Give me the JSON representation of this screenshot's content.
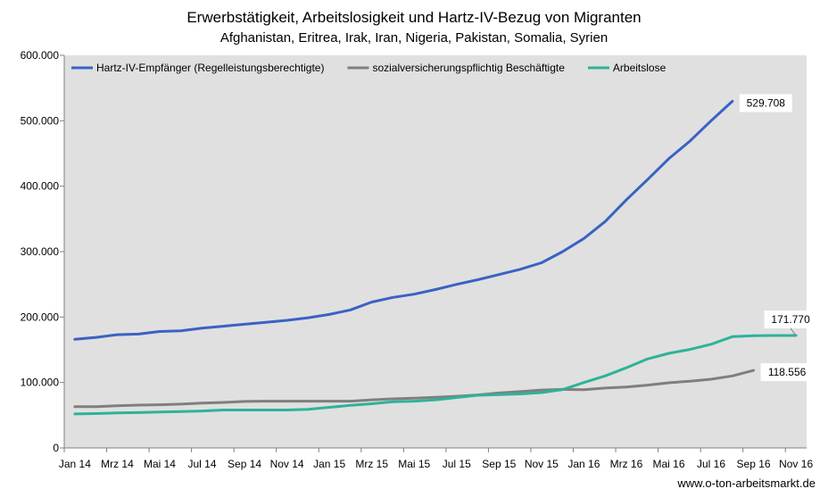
{
  "chart_data": {
    "type": "line",
    "title": "Erwerbstätigkeit, Arbeitslosigkeit und Hartz-IV-Bezug von Migranten",
    "subtitle": "Afghanistan,  Eritrea,  Irak,  Iran,  Nigeria,  Pakistan,  Somalia,  Syrien",
    "source": "www.o-ton-arbeitsmarkt.de",
    "ylim": [
      0,
      600000
    ],
    "y_ticks": [
      0,
      100000,
      200000,
      300000,
      400000,
      500000,
      600000
    ],
    "y_tick_labels": [
      "0",
      "100.000",
      "200.000",
      "300.000",
      "400.000",
      "500.000",
      "600.000"
    ],
    "x": [
      "Jan 14",
      "Feb 14",
      "Mrz 14",
      "Apr 14",
      "Mai 14",
      "Jun 14",
      "Jul 14",
      "Aug 14",
      "Sep 14",
      "Okt 14",
      "Nov 14",
      "Dez 14",
      "Jan 15",
      "Feb 15",
      "Mrz 15",
      "Apr 15",
      "Mai 15",
      "Jun 15",
      "Jul 15",
      "Aug 15",
      "Sep 15",
      "Okt 15",
      "Nov 15",
      "Dez 15",
      "Jan 16",
      "Feb 16",
      "Mrz 16",
      "Apr 16",
      "Mai 16",
      "Jun 16",
      "Jul 16",
      "Aug 16",
      "Sep 16",
      "Okt 16",
      "Nov 16"
    ],
    "x_tick_labels": [
      "Jan 14",
      "Mrz 14",
      "Mai 14",
      "Jul 14",
      "Sep 14",
      "Nov 14",
      "Jan 15",
      "Mrz 15",
      "Mai 15",
      "Jul 15",
      "Sep 15",
      "Nov 15",
      "Jan 16",
      "Mrz 16",
      "Mai 16",
      "Jul 16",
      "Sep 16",
      "Nov 16"
    ],
    "legend_position": "top",
    "grid": false,
    "background": "#e0e0e0",
    "series": [
      {
        "name": "Hartz-IV-Empfänger (Regelleistungsberechtigte)",
        "color": "#3a62c4",
        "values": [
          166000,
          169000,
          173000,
          174000,
          178000,
          179000,
          183000,
          186000,
          189000,
          192000,
          195000,
          199000,
          204000,
          211000,
          223000,
          230000,
          235000,
          242000,
          250000,
          257000,
          265000,
          273000,
          283000,
          300000,
          320000,
          346000,
          379000,
          410000,
          442000,
          469000,
          500000,
          529708,
          null,
          null,
          null
        ],
        "end_label": "529.708"
      },
      {
        "name": "sozialversicherungspflichtig Beschäftigte",
        "color": "#7f7f7f",
        "values": [
          63000,
          63000,
          64500,
          65500,
          66000,
          67000,
          68500,
          69500,
          71000,
          71500,
          71500,
          71500,
          71500,
          71500,
          73500,
          75000,
          76000,
          77500,
          79000,
          81000,
          84000,
          86000,
          88500,
          89500,
          89000,
          91500,
          93000,
          96000,
          99500,
          102000,
          105000,
          110000,
          118556,
          null,
          null
        ],
        "end_label": "118.556"
      },
      {
        "name": "Arbeitslose",
        "color": "#2db39a",
        "values": [
          52000,
          52500,
          53500,
          54000,
          55000,
          55500,
          56500,
          58000,
          58000,
          58000,
          58000,
          59000,
          62000,
          65000,
          67500,
          70500,
          71500,
          73500,
          77000,
          80500,
          81500,
          82500,
          84500,
          89000,
          100000,
          110000,
          122500,
          136000,
          144500,
          150500,
          158500,
          170000,
          171500,
          171770,
          171770
        ],
        "end_label": "171.770"
      }
    ]
  }
}
